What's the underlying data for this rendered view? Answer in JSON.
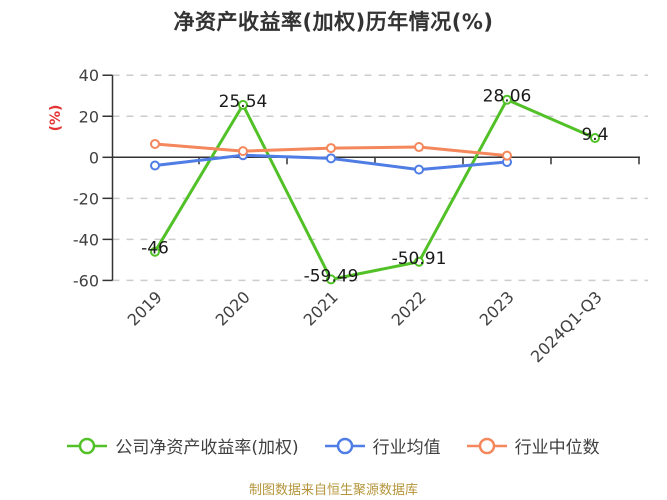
{
  "footer": "制图数据来自恒生聚源数据库",
  "chart_data": {
    "type": "line",
    "title": "净资产收益率(加权)历年情况(%)",
    "categories": [
      "2019",
      "2020",
      "2021",
      "2022",
      "2023",
      "2024Q1-Q3"
    ],
    "series": [
      {
        "name": "公司净资产收益率(加权)",
        "color": "#52c127",
        "values": [
          -46,
          25.54,
          -59.49,
          -50.91,
          28.06,
          9.4
        ],
        "labels": [
          "-46",
          "25.54",
          "-59.49",
          "-50.91",
          "28.06",
          "9.4"
        ]
      },
      {
        "name": "行业均值",
        "color": "#4f7de5",
        "values": [
          -4,
          1,
          -0.5,
          -6,
          -2.3,
          null
        ],
        "labels": null
      },
      {
        "name": "行业中位数",
        "color": "#f4875c",
        "values": [
          6.5,
          3,
          4.5,
          5,
          0.8,
          null
        ],
        "labels": null
      }
    ],
    "xlabel": "",
    "ylabel": "(%)",
    "ylabel_color": "#e53333",
    "y_ticks": [
      40,
      20,
      0,
      -20,
      -40,
      -60
    ],
    "ylim": [
      -60,
      40
    ],
    "grid": "horizontal-dashed",
    "grid_color": "#cccccc",
    "axis_color": "#333333",
    "tick_label_color": "#404040",
    "data_label_color": "#1a1a1a",
    "legend_position": "bottom",
    "x_tick_rotation": -45
  }
}
